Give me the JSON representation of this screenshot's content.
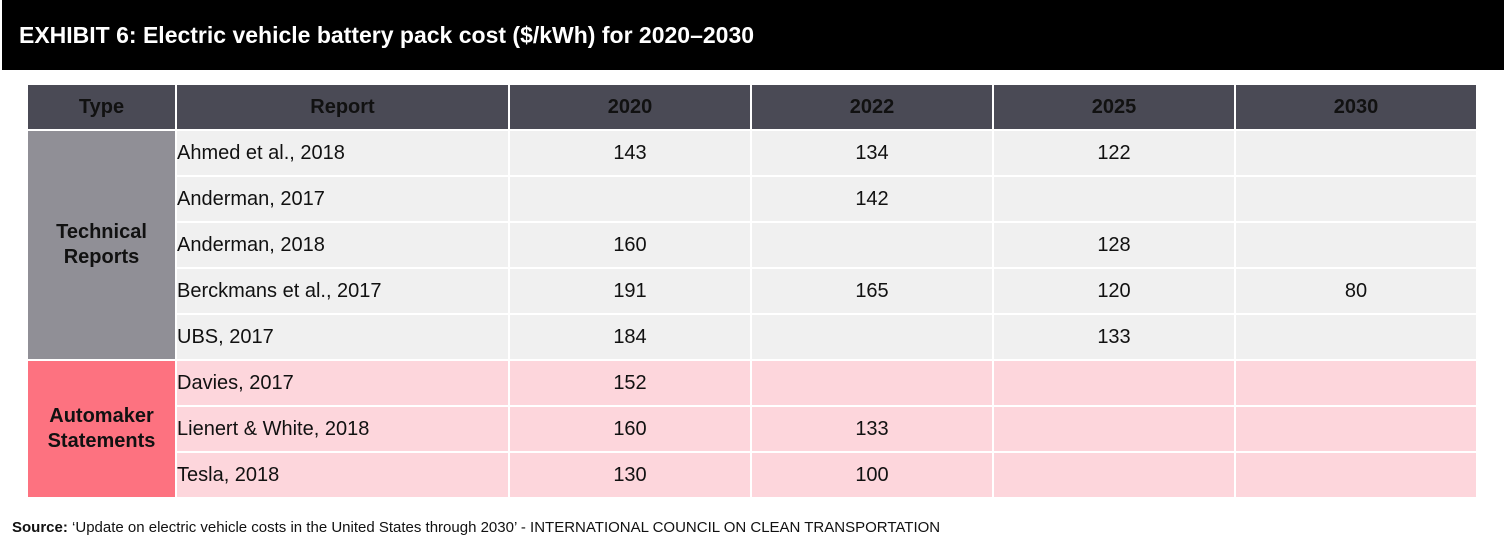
{
  "title": "EXHIBIT 6: Electric vehicle battery pack cost ($/kWh) for 2020–2030",
  "table": {
    "headers": [
      "Type",
      "Report",
      "2020",
      "2022",
      "2025",
      "2030"
    ],
    "groups": [
      {
        "type": "Technical Reports",
        "type_line1": "Technical",
        "type_line2": "Reports",
        "rows": [
          {
            "report": "Ahmed et al., 2018",
            "y2020": "143",
            "y2022": "134",
            "y2025": "122",
            "y2030": ""
          },
          {
            "report": "Anderman, 2017",
            "y2020": "",
            "y2022": "142",
            "y2025": "",
            "y2030": ""
          },
          {
            "report": "Anderman, 2018",
            "y2020": "160",
            "y2022": "",
            "y2025": "128",
            "y2030": ""
          },
          {
            "report": "Berckmans et al., 2017",
            "y2020": "191",
            "y2022": "165",
            "y2025": "120",
            "y2030": "80"
          },
          {
            "report": "UBS, 2017",
            "y2020": "184",
            "y2022": "",
            "y2025": "133",
            "y2030": ""
          }
        ]
      },
      {
        "type": "Automaker Statements",
        "type_line1": "Automaker",
        "type_line2": "Statements",
        "rows": [
          {
            "report": "Davies, 2017",
            "y2020": "152",
            "y2022": "",
            "y2025": "",
            "y2030": ""
          },
          {
            "report": "Lienert & White, 2018",
            "y2020": "160",
            "y2022": "133",
            "y2025": "",
            "y2030": ""
          },
          {
            "report": "Tesla, 2018",
            "y2020": "130",
            "y2022": "100",
            "y2025": "",
            "y2030": ""
          }
        ]
      }
    ]
  },
  "source": {
    "label": "Source:",
    "text": " ‘Update on electric vehicle costs in the United States through 2030’ - INTERNATIONAL COUNCIL ON CLEAN TRANSPORTATION"
  },
  "colors": {
    "header_bg": "#4a4a55",
    "technical_type_bg": "#908f96",
    "technical_row_bg": "#f0f0f0",
    "automaker_type_bg": "#fd7280",
    "automaker_row_bg": "#fdd6dc"
  }
}
